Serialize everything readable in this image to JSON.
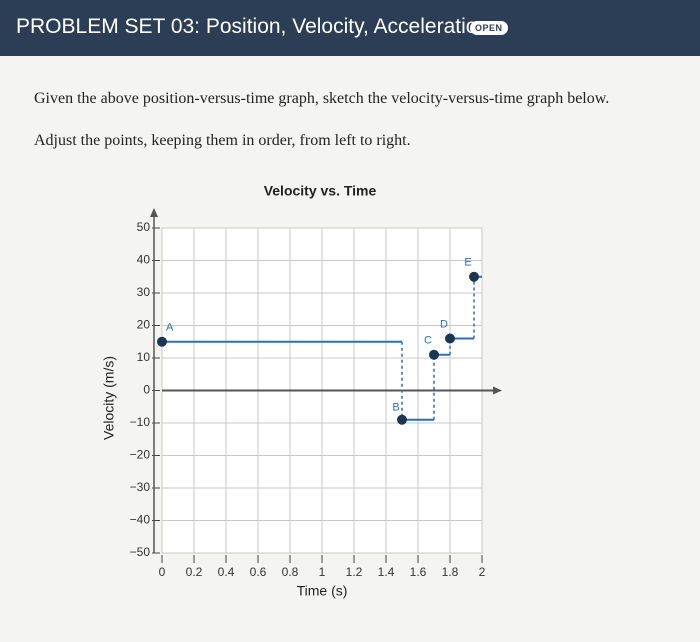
{
  "header": {
    "title": "PROBLEM SET 03: Position, Velocity, Acceleration",
    "badge": "OPEN"
  },
  "instructions": [
    "Given the above position-versus-time graph, sketch the velocity-versus-time graph below.",
    "Adjust the points, keeping them in order, from left to right."
  ],
  "chart_data": {
    "type": "step",
    "title": "Velocity vs. Time",
    "x_label": "Time (s)",
    "y_label": "Velocity (m/s)",
    "xlim": [
      0,
      2
    ],
    "xticks": [
      0,
      0.2,
      0.4,
      0.6,
      0.8,
      1,
      1.2,
      1.4,
      1.6,
      1.8,
      2
    ],
    "ylim": [
      -50,
      50
    ],
    "yticks": [
      {
        "value": -50,
        "label": "−50"
      },
      {
        "value": -40,
        "label": "−40"
      },
      {
        "value": -30,
        "label": "−30"
      },
      {
        "value": -20,
        "label": "−20"
      },
      {
        "value": -10,
        "label": "−10"
      },
      0,
      10,
      20,
      30,
      40,
      50
    ],
    "grid": true,
    "series": [
      {
        "color": "#2f6db5",
        "point_labels": [
          "A",
          "B",
          "C",
          "D",
          "E"
        ],
        "x": [
          0,
          1.5,
          1.7,
          1.8,
          1.95
        ],
        "values": [
          15,
          -9,
          11,
          16,
          35
        ]
      }
    ]
  }
}
